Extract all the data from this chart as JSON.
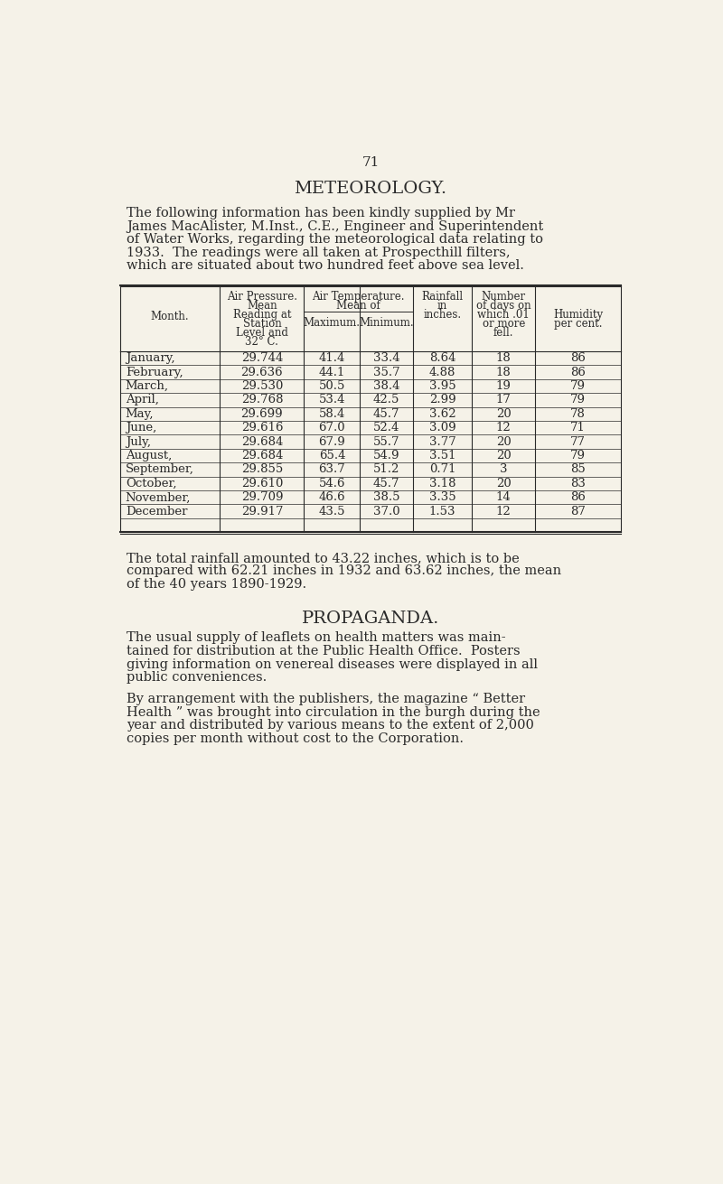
{
  "page_number": "71",
  "bg_color": "#f5f2e8",
  "text_color": "#2a2a2a",
  "title": "METEOROLOGY.",
  "months": [
    "January,",
    "February,",
    "March,",
    "April,",
    "May,",
    "June,",
    "July,",
    "August,",
    "September,",
    "October,",
    "November,",
    "December"
  ],
  "air_pressure": [
    "29.744",
    "29.636",
    "29.530",
    "29.768",
    "29.699",
    "29.616",
    "29.684",
    "29.684",
    "29.855",
    "29.610",
    "29.709",
    "29.917"
  ],
  "temp_max": [
    "41.4",
    "44.1",
    "50.5",
    "53.4",
    "58.4",
    "67.0",
    "67.9",
    "65.4",
    "63.7",
    "54.6",
    "46.6",
    "43.5"
  ],
  "temp_min": [
    "33.4",
    "35.7",
    "38.4",
    "42.5",
    "45.7",
    "52.4",
    "55.7",
    "54.9",
    "51.2",
    "45.7",
    "38.5",
    "37.0"
  ],
  "rainfall": [
    "8.64",
    "4.88",
    "3.95",
    "2.99",
    "3.62",
    "3.09",
    "3.77",
    "3.51",
    "0.71",
    "3.18",
    "3.35",
    "1.53"
  ],
  "rain_days": [
    "18",
    "18",
    "19",
    "17",
    "20",
    "12",
    "20",
    "20",
    "3",
    "20",
    "14",
    "12"
  ],
  "humidity": [
    "86",
    "86",
    "79",
    "79",
    "78",
    "71",
    "77",
    "79",
    "85",
    "83",
    "86",
    "87"
  ],
  "footer_lines": [
    "The total rainfall amounted to 43.22 inches, which is to be",
    "compared with 62.21 inches in 1932 and 63.62 inches, the mean",
    "of the 40 years 1890-1929."
  ],
  "section2_title": "PROPAGANDA.",
  "para1_lines": [
    "The usual supply of leaflets on health matters was main-",
    "tained for distribution at the Public Health Office.  Posters",
    "giving information on venereal diseases were displayed in all",
    "public conveniences."
  ],
  "para2_lines": [
    "By arrangement with the publishers, the magazine “ Better",
    "Health ” was brought into circulation in the burgh during the",
    "year and distributed by various means to the extent of 2,000",
    "copies per month without cost to the Corporation."
  ],
  "intro_lines": [
    "The following information has been kindly supplied by Mr",
    "James MacAlister, M.Inst., C.E., Engineer and Superintendent",
    "of Water Works, regarding the meteorological data relating to",
    "1933.  The readings were all taken at Prospecthill filters,",
    "which are situated about two hundred feet above sea level."
  ]
}
